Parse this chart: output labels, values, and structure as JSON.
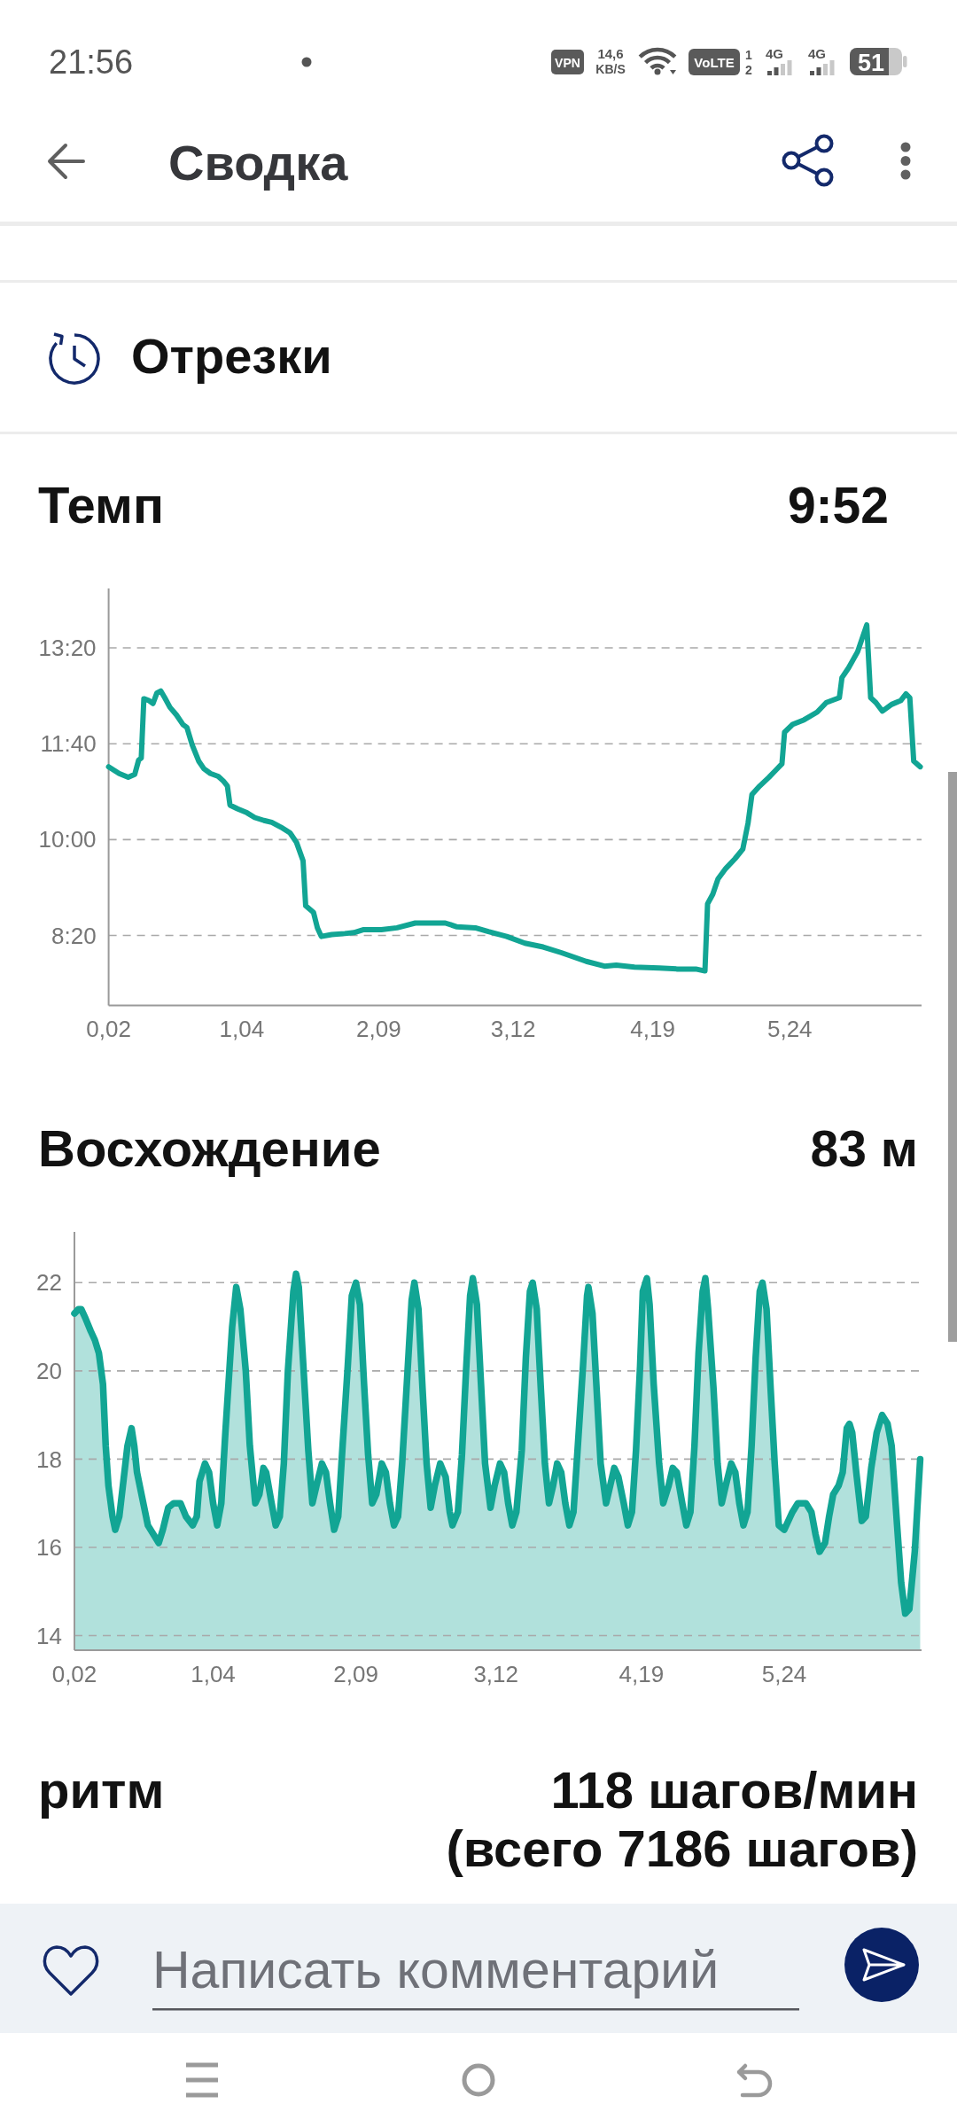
{
  "chart_data": [
    {
      "type": "other",
      "annotations": [
        "21:56",
        "VPN",
        "14,6",
        "KB/S",
        "VoLTE",
        "1",
        "2",
        "4G",
        "4G",
        "51"
      ]
    },
    {
      "type": "other",
      "title": "Сводка",
      "subtitle": "Отрезки"
    },
    {
      "type": "line",
      "title": "Темп",
      "subtitle": "9:52",
      "x": [
        0.02,
        0.1,
        0.17,
        0.22,
        0.25,
        0.27,
        0.29,
        0.33,
        0.36,
        0.39,
        0.42,
        0.45,
        0.49,
        0.54,
        0.59,
        0.62,
        0.66,
        0.71,
        0.75,
        0.8,
        0.86,
        0.9,
        0.93,
        0.95,
        1.01,
        1.08,
        1.14,
        1.21,
        1.27,
        1.34,
        1.41,
        1.46,
        1.51,
        1.53,
        1.59,
        1.62,
        1.65,
        1.73,
        1.83,
        1.9,
        1.97,
        2.11,
        2.23,
        2.37,
        2.51,
        2.6,
        2.69,
        2.83,
        2.93,
        3.07,
        3.21,
        3.35,
        3.49,
        3.68,
        3.82,
        3.91,
        4.05,
        4.24,
        4.38,
        4.52,
        4.59,
        4.61,
        4.65,
        4.69,
        4.75,
        4.82,
        4.88,
        4.92,
        4.95,
        5.01,
        5.08,
        5.13,
        5.18,
        5.2,
        5.26,
        5.35,
        5.45,
        5.52,
        5.62,
        5.64,
        5.69,
        5.76,
        5.83,
        5.86,
        5.9,
        5.95,
        6.02,
        6.09,
        6.13,
        6.16,
        6.19,
        6.24
      ],
      "series": [
        {
          "color": "#12a594",
          "values": [
            676,
            669,
            665,
            668,
            683,
            685,
            747,
            745,
            742,
            753,
            755,
            748,
            738,
            730,
            720,
            717,
            699,
            682,
            674,
            669,
            666,
            661,
            656,
            636,
            632,
            628,
            623,
            620,
            618,
            613,
            607,
            597,
            578,
            531,
            524,
            508,
            499,
            501,
            502,
            503,
            506,
            506,
            508,
            513,
            513,
            513,
            509,
            508,
            504,
            499,
            492,
            488,
            482,
            473,
            468,
            469,
            467,
            466,
            465,
            465,
            463,
            533,
            543,
            559,
            570,
            580,
            590,
            617,
            647,
            656,
            665,
            672,
            679,
            712,
            720,
            725,
            733,
            743,
            748,
            769,
            779,
            796,
            824,
            748,
            743,
            734,
            741,
            745,
            752,
            748,
            682,
            676
          ]
        }
      ],
      "xlim": [
        0.02,
        6.25
      ],
      "xticks": [
        {
          "value": 0.02,
          "label": "0,02"
        },
        {
          "value": 1.04,
          "label": "1,04"
        },
        {
          "value": 2.09,
          "label": "2,09"
        },
        {
          "value": 3.12,
          "label": "3,12"
        },
        {
          "value": 4.19,
          "label": "4,19"
        },
        {
          "value": 5.24,
          "label": "5,24"
        }
      ],
      "ylim": [
        427,
        862
      ],
      "yticks": [
        {
          "value": 500,
          "label": "8:20"
        },
        {
          "value": 600,
          "label": "10:00"
        },
        {
          "value": 700,
          "label": "11:40"
        },
        {
          "value": 800,
          "label": "13:20"
        }
      ],
      "grid": "y"
    },
    {
      "type": "area",
      "title": "Восхождение",
      "subtitle": "83 м",
      "x": [
        0.02,
        0.05,
        0.07,
        0.1,
        0.14,
        0.17,
        0.2,
        0.23,
        0.25,
        0.27,
        0.3,
        0.32,
        0.35,
        0.38,
        0.41,
        0.44,
        0.46,
        0.48,
        0.52,
        0.56,
        0.6,
        0.64,
        0.67,
        0.71,
        0.75,
        0.8,
        0.84,
        0.89,
        0.92,
        0.94,
        0.98,
        1.01,
        1.04,
        1.07,
        1.1,
        1.13,
        1.18,
        1.21,
        1.24,
        1.28,
        1.31,
        1.35,
        1.38,
        1.41,
        1.43,
        1.47,
        1.5,
        1.53,
        1.56,
        1.59,
        1.63,
        1.65,
        1.67,
        1.7,
        1.74,
        1.77,
        1.8,
        1.84,
        1.87,
        1.9,
        1.93,
        1.96,
        1.99,
        2.03,
        2.06,
        2.09,
        2.12,
        2.15,
        2.18,
        2.21,
        2.24,
        2.28,
        2.31,
        2.34,
        2.37,
        2.4,
        2.43,
        2.47,
        2.5,
        2.52,
        2.55,
        2.58,
        2.61,
        2.64,
        2.67,
        2.71,
        2.75,
        2.78,
        2.8,
        2.84,
        2.87,
        2.9,
        2.93,
        2.95,
        2.98,
        3.01,
        3.04,
        3.08,
        3.11,
        3.15,
        3.18,
        3.21,
        3.24,
        3.27,
        3.31,
        3.34,
        3.37,
        3.39,
        3.42,
        3.45,
        3.48,
        3.51,
        3.54,
        3.57,
        3.6,
        3.63,
        3.66,
        3.69,
        3.72,
        3.76,
        3.79,
        3.8,
        3.83,
        3.86,
        3.89,
        3.93,
        3.96,
        3.99,
        4.02,
        4.06,
        4.09,
        4.12,
        4.15,
        4.18,
        4.2,
        4.23,
        4.25,
        4.28,
        4.32,
        4.35,
        4.39,
        4.42,
        4.45,
        4.49,
        4.52,
        4.55,
        4.58,
        4.61,
        4.64,
        4.66,
        4.68,
        4.72,
        4.75,
        4.78,
        4.81,
        4.85,
        4.88,
        4.91,
        4.94,
        4.97,
        5.0,
        5.03,
        5.06,
        5.08,
        5.11,
        5.14,
        5.17,
        5.2,
        5.24,
        5.27,
        5.3,
        5.34,
        5.4,
        5.44,
        5.47,
        5.5,
        5.54,
        5.57,
        5.6,
        5.64,
        5.67,
        5.7,
        5.72,
        5.74,
        5.77,
        5.81,
        5.84,
        5.88,
        5.92,
        5.96,
        6.0,
        6.03,
        6.07,
        6.1,
        6.13,
        6.16,
        6.2,
        6.24
      ],
      "series": [
        {
          "color": "#12a594",
          "values": [
            21.3,
            21.4,
            21.4,
            21.2,
            20.9,
            20.7,
            20.4,
            19.7,
            18.3,
            17.4,
            16.7,
            16.4,
            16.7,
            17.5,
            18.3,
            18.7,
            18.3,
            17.7,
            17.1,
            16.5,
            16.3,
            16.1,
            16.4,
            16.9,
            17.0,
            17.0,
            16.7,
            16.5,
            16.7,
            17.5,
            17.9,
            17.7,
            17.0,
            16.5,
            17.0,
            18.6,
            21.0,
            21.9,
            21.4,
            20.0,
            18.3,
            17.0,
            17.2,
            17.8,
            17.7,
            17.0,
            16.5,
            16.7,
            17.9,
            20.0,
            21.8,
            22.2,
            21.9,
            20.3,
            18.2,
            17.0,
            17.4,
            17.9,
            17.7,
            17.0,
            16.4,
            16.7,
            18.2,
            20.1,
            21.7,
            22.0,
            21.5,
            19.7,
            18.1,
            17.0,
            17.2,
            17.9,
            17.7,
            17.0,
            16.5,
            16.7,
            17.9,
            20.0,
            21.6,
            22.0,
            21.4,
            19.6,
            17.9,
            16.9,
            17.4,
            17.9,
            17.6,
            16.8,
            16.5,
            16.8,
            18.1,
            20.0,
            21.7,
            22.1,
            21.5,
            19.7,
            17.9,
            16.9,
            17.4,
            17.9,
            17.7,
            17.0,
            16.5,
            16.8,
            18.2,
            20.3,
            21.8,
            22.0,
            21.4,
            19.6,
            17.9,
            17.0,
            17.4,
            17.9,
            17.7,
            17.0,
            16.5,
            16.8,
            18.2,
            20.1,
            21.7,
            21.9,
            21.3,
            19.6,
            17.9,
            17.0,
            17.4,
            17.8,
            17.6,
            17.0,
            16.5,
            16.8,
            18.2,
            20.1,
            21.8,
            22.1,
            21.5,
            19.7,
            17.9,
            17.0,
            17.4,
            17.8,
            17.7,
            17.0,
            16.5,
            16.8,
            18.3,
            20.4,
            21.8,
            22.1,
            21.4,
            19.6,
            17.9,
            17.0,
            17.4,
            17.9,
            17.7,
            17.0,
            16.5,
            16.8,
            18.3,
            20.3,
            21.8,
            22.0,
            21.4,
            19.6,
            17.9,
            16.5,
            16.4,
            16.6,
            16.8,
            17.0,
            17.0,
            16.8,
            16.3,
            15.9,
            16.1,
            16.7,
            17.2,
            17.4,
            17.7,
            18.7,
            18.8,
            18.6,
            17.7,
            16.6,
            16.7,
            17.8,
            18.6,
            19.0,
            18.8,
            18.3,
            16.5,
            15.2,
            14.5,
            14.6,
            15.9,
            18.0
          ]
        }
      ],
      "xlim": [
        0.02,
        6.25
      ],
      "xticks": [
        {
          "value": 0.02,
          "label": "0,02"
        },
        {
          "value": 1.04,
          "label": "1,04"
        },
        {
          "value": 2.09,
          "label": "2,09"
        },
        {
          "value": 3.12,
          "label": "3,12"
        },
        {
          "value": 4.19,
          "label": "4,19"
        },
        {
          "value": 5.24,
          "label": "5,24"
        }
      ],
      "ylim": [
        13.67,
        23.15
      ],
      "yticks": [
        14,
        16,
        18,
        20,
        22
      ],
      "grid": "y"
    },
    {
      "type": "other",
      "title": "ритм",
      "subtitle": "118 шагов/мин (всего 7186 шагов)"
    },
    {
      "type": "other",
      "annotations": [
        "Написать комментарий"
      ]
    }
  ]
}
